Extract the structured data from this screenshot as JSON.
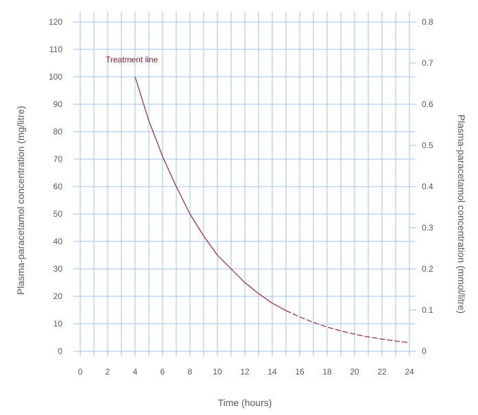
{
  "chart_data": {
    "type": "line",
    "xlabel": "Time (hours)",
    "ylabel": "Plasma-paracetamol concentration (mg/litre)",
    "ylabel_right": "Plasma-paracetamol concentration (mmol/litre)",
    "xlim": [
      0,
      24
    ],
    "ylim": [
      0,
      120
    ],
    "ylim_right": [
      0,
      0.8
    ],
    "x_ticks": [
      "0",
      "2",
      "4",
      "6",
      "8",
      "10",
      "12",
      "14",
      "16",
      "18",
      "20",
      "22",
      "24"
    ],
    "y_ticks": [
      "0",
      "10",
      "20",
      "30",
      "40",
      "50",
      "60",
      "70",
      "80",
      "90",
      "100",
      "110",
      "120"
    ],
    "y_ticks_right": [
      "0",
      "0.1",
      "0.2",
      "0.3",
      "0.4",
      "0.5",
      "0.6",
      "0.7",
      "0.8"
    ],
    "grid": true,
    "series": [
      {
        "name": "Treatment line",
        "color": "#9b2335",
        "solid_until_x": 15,
        "x": [
          4,
          5,
          6,
          7,
          8,
          9,
          10,
          11,
          12,
          13,
          14,
          15,
          16,
          17,
          18,
          19,
          20,
          21,
          22,
          23,
          24
        ],
        "y": [
          100,
          84,
          71,
          60,
          50,
          42,
          35,
          30,
          25,
          21,
          17.5,
          14.8,
          12.5,
          10.5,
          8.8,
          7.4,
          6.2,
          5.2,
          4.4,
          3.7,
          3.1
        ]
      }
    ]
  }
}
